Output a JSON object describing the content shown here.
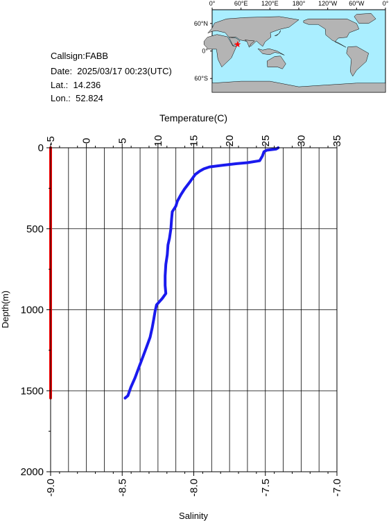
{
  "station": {
    "callsign_label": "Callsign:FABB",
    "date_label": "Date:  2025/03/17 00:23(UTC)",
    "lat_label": "Lat.:  14.236",
    "lon_label": "Lon.:  52.824"
  },
  "map": {
    "lon_labels": [
      "0°",
      "60°E",
      "120°E",
      "180°",
      "120°W",
      "60°W",
      "0°"
    ],
    "lat_labels": [
      "60°N",
      "0°",
      "60°S"
    ],
    "marker": {
      "lat": 14.236,
      "lon": 52.824
    },
    "colors": {
      "ocean": "#aaeeff",
      "land": "#b4b4b4",
      "marker": "#ff0000"
    }
  },
  "chart_data": {
    "type": "line",
    "y_label": "Depth(m)",
    "y_ticks": [
      "0",
      "500",
      "1000",
      "1500",
      "2000"
    ],
    "ylim": [
      0,
      2000
    ],
    "y_inverted": true,
    "top_axis": {
      "label": "Temperature(C)",
      "range": [
        -5,
        35
      ],
      "ticks": [
        "-5",
        "0",
        "5",
        "10",
        "15",
        "20",
        "25",
        "30",
        "35"
      ]
    },
    "bottom_axis": {
      "label": "Salinity",
      "range": [
        -9.0,
        -7.0
      ],
      "ticks": [
        "-9.0",
        "-8.5",
        "-8.0",
        "-7.5",
        "-7.0"
      ]
    },
    "grid": true,
    "series": [
      {
        "axis": "temperature",
        "color": "#1a1aee",
        "points": [
          [
            26.8,
            0
          ],
          [
            26.5,
            8
          ],
          [
            25.2,
            15
          ],
          [
            24.8,
            25
          ],
          [
            24.6,
            50
          ],
          [
            24.2,
            80
          ],
          [
            22.5,
            92
          ],
          [
            21.0,
            98
          ],
          [
            19.0,
            108
          ],
          [
            17.2,
            118
          ],
          [
            16.4,
            130
          ],
          [
            15.8,
            145
          ],
          [
            15.2,
            165
          ],
          [
            14.8,
            190
          ],
          [
            14.3,
            220
          ],
          [
            13.7,
            255
          ],
          [
            13.2,
            290
          ],
          [
            12.7,
            330
          ],
          [
            12.5,
            360
          ],
          [
            12.0,
            395
          ],
          [
            11.9,
            440
          ],
          [
            11.8,
            500
          ],
          [
            11.6,
            560
          ],
          [
            11.4,
            600
          ],
          [
            11.3,
            660
          ],
          [
            11.1,
            720
          ],
          [
            11.0,
            790
          ],
          [
            11.0,
            850
          ],
          [
            11.1,
            900
          ],
          [
            10.6,
            930
          ],
          [
            9.8,
            970
          ],
          [
            9.6,
            1010
          ],
          [
            9.4,
            1060
          ],
          [
            9.2,
            1110
          ],
          [
            8.9,
            1170
          ],
          [
            8.4,
            1230
          ],
          [
            7.9,
            1290
          ],
          [
            7.3,
            1360
          ],
          [
            6.8,
            1420
          ],
          [
            6.2,
            1480
          ],
          [
            5.8,
            1530
          ],
          [
            5.4,
            1545
          ]
        ]
      },
      {
        "axis": "salinity",
        "color": "#ff0000",
        "points": [
          [
            -9.0,
            0
          ],
          [
            -9.0,
            1545
          ]
        ]
      }
    ]
  }
}
